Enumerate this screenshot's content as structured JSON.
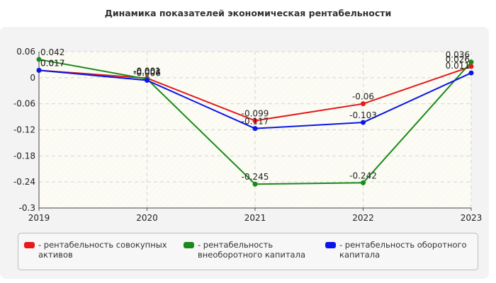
{
  "title": "Динамика показателей экономическая рентабельности",
  "colors": {
    "background": "#ffffff",
    "panel": "#f3f3f3",
    "plot": "#fcfcf4",
    "grid": "#d4d4d4"
  },
  "chart_data": {
    "type": "line",
    "title": "Динамика показателей экономическая рентабельности",
    "xlabel": "",
    "ylabel": "",
    "categories": [
      "2019",
      "2020",
      "2021",
      "2022",
      "2023"
    ],
    "ylim": [
      -0.3,
      0.06
    ],
    "yticks": [
      0.06,
      0,
      -0.06,
      -0.12,
      -0.18,
      -0.24,
      -0.3
    ],
    "ytick_labels": [
      "0.06",
      "0",
      "-0.06",
      "-0.12",
      "-0.18",
      "-0.24",
      "-0.3"
    ],
    "grid": true,
    "legend_position": "bottom",
    "series": [
      {
        "name": "- рентабельность совокупных активов",
        "color": "#e41a1c",
        "values": [
          0.017,
          -0.001,
          -0.099,
          -0.06,
          0.026
        ],
        "labels": [
          "0.017",
          "-0.001",
          "-0.099",
          "-0.06",
          "0.026"
        ]
      },
      {
        "name": "- рентабельность внеоборотного капитала",
        "color": "#1a8a1a",
        "values": [
          0.042,
          -0.003,
          -0.245,
          -0.242,
          0.036
        ],
        "labels": [
          "0.042",
          "-0.003",
          "-0.245",
          "-0.242",
          "0.036"
        ]
      },
      {
        "name": "- рентабельность оборотного капитала",
        "color": "#0a16e8",
        "values": [
          0.017,
          -0.006,
          -0.117,
          -0.103,
          0.011
        ],
        "labels": [
          "0.017",
          "-0.006",
          "-0.117",
          "-0.103",
          "0.011"
        ]
      }
    ]
  },
  "legend": {
    "items": [
      {
        "line1": "- рентабельность совокупных",
        "line2": "активов"
      },
      {
        "line1": "- рентабельность",
        "line2": "внеоборотного капитала"
      },
      {
        "line1": "- рентабельность оборотного",
        "line2": "капитала"
      }
    ]
  }
}
